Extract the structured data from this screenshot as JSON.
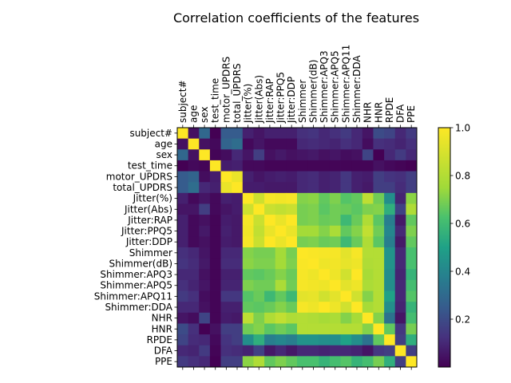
{
  "chart_data": {
    "type": "heatmap",
    "title": "Correlation coefficients of the features",
    "xlabel": "",
    "ylabel": "",
    "x_tick_position": "top",
    "labels": [
      "subject#",
      "age",
      "sex",
      "test_time",
      "motor_UPDRS",
      "total_UPDRS",
      "Jitter(%)",
      "Jitter(Abs)",
      "Jitter:RAP",
      "Jitter:PPQ5",
      "Jitter:DDP",
      "Shimmer",
      "Shimmer(dB)",
      "Shimmer:APQ3",
      "Shimmer:APQ5",
      "Shimmer:APQ11",
      "Shimmer:DDA",
      "NHR",
      "HNR",
      "RPDE",
      "DFA",
      "PPE"
    ],
    "colormap": "viridis",
    "color_range": [
      0.0,
      1.0
    ],
    "colorbar_ticks": [
      "0.2",
      "0.4",
      "0.6",
      "0.8",
      "1.0"
    ],
    "colorbar_tick_values": [
      0.2,
      0.4,
      0.6,
      0.8,
      1.0
    ],
    "values": [
      [
        1.0,
        0.04,
        0.29,
        0.0,
        0.25,
        0.25,
        0.08,
        0.05,
        0.08,
        0.08,
        0.08,
        0.12,
        0.13,
        0.1,
        0.12,
        0.15,
        0.1,
        0.05,
        0.2,
        0.18,
        0.1,
        0.15
      ],
      [
        0.04,
        1.0,
        0.04,
        0.02,
        0.28,
        0.31,
        0.02,
        0.05,
        0.02,
        0.02,
        0.02,
        0.1,
        0.11,
        0.1,
        0.09,
        0.12,
        0.1,
        0.03,
        0.12,
        0.11,
        0.09,
        0.12
      ],
      [
        0.29,
        0.04,
        1.0,
        0.01,
        0.03,
        0.1,
        0.05,
        0.16,
        0.04,
        0.06,
        0.04,
        0.05,
        0.06,
        0.04,
        0.05,
        0.03,
        0.04,
        0.18,
        0.0,
        0.1,
        0.15,
        0.1
      ],
      [
        0.0,
        0.02,
        0.01,
        1.0,
        0.07,
        0.08,
        0.02,
        0.02,
        0.01,
        0.01,
        0.01,
        0.01,
        0.01,
        0.01,
        0.01,
        0.01,
        0.01,
        0.01,
        0.04,
        0.02,
        0.01,
        0.0
      ],
      [
        0.25,
        0.28,
        0.03,
        0.07,
        1.0,
        0.95,
        0.08,
        0.05,
        0.07,
        0.08,
        0.07,
        0.1,
        0.11,
        0.08,
        0.09,
        0.14,
        0.08,
        0.07,
        0.16,
        0.13,
        0.12,
        0.16
      ],
      [
        0.25,
        0.31,
        0.1,
        0.08,
        0.95,
        1.0,
        0.07,
        0.07,
        0.06,
        0.06,
        0.06,
        0.1,
        0.11,
        0.08,
        0.09,
        0.14,
        0.08,
        0.06,
        0.16,
        0.16,
        0.11,
        0.16
      ],
      [
        0.08,
        0.02,
        0.05,
        0.02,
        0.08,
        0.07,
        1.0,
        0.87,
        0.98,
        0.97,
        0.98,
        0.71,
        0.72,
        0.66,
        0.7,
        0.64,
        0.66,
        0.83,
        0.68,
        0.43,
        0.09,
        0.72
      ],
      [
        0.05,
        0.05,
        0.16,
        0.02,
        0.05,
        0.07,
        0.87,
        1.0,
        0.86,
        0.84,
        0.86,
        0.69,
        0.7,
        0.65,
        0.68,
        0.67,
        0.65,
        0.7,
        0.71,
        0.55,
        0.17,
        0.79
      ],
      [
        0.08,
        0.02,
        0.04,
        0.01,
        0.07,
        0.06,
        0.98,
        0.86,
        1.0,
        0.95,
        1.0,
        0.69,
        0.7,
        0.67,
        0.68,
        0.59,
        0.67,
        0.79,
        0.65,
        0.37,
        0.06,
        0.66
      ],
      [
        0.08,
        0.02,
        0.06,
        0.01,
        0.08,
        0.06,
        0.97,
        0.84,
        0.95,
        1.0,
        0.95,
        0.76,
        0.76,
        0.71,
        0.78,
        0.66,
        0.71,
        0.84,
        0.68,
        0.4,
        0.1,
        0.7
      ],
      [
        0.08,
        0.02,
        0.04,
        0.01,
        0.07,
        0.06,
        0.98,
        0.86,
        1.0,
        0.95,
        1.0,
        0.69,
        0.7,
        0.67,
        0.68,
        0.59,
        0.67,
        0.79,
        0.65,
        0.37,
        0.06,
        0.66
      ],
      [
        0.12,
        0.1,
        0.05,
        0.01,
        0.1,
        0.1,
        0.71,
        0.69,
        0.69,
        0.76,
        0.69,
        1.0,
        0.99,
        0.98,
        0.98,
        0.93,
        0.98,
        0.8,
        0.8,
        0.45,
        0.1,
        0.62
      ],
      [
        0.13,
        0.11,
        0.06,
        0.01,
        0.11,
        0.11,
        0.72,
        0.7,
        0.7,
        0.76,
        0.7,
        0.99,
        1.0,
        0.96,
        0.97,
        0.94,
        0.96,
        0.79,
        0.8,
        0.45,
        0.1,
        0.62
      ],
      [
        0.1,
        0.1,
        0.04,
        0.01,
        0.08,
        0.08,
        0.66,
        0.65,
        0.67,
        0.71,
        0.67,
        0.98,
        0.96,
        1.0,
        0.96,
        0.88,
        1.0,
        0.77,
        0.8,
        0.43,
        0.09,
        0.57
      ],
      [
        0.12,
        0.09,
        0.05,
        0.01,
        0.09,
        0.09,
        0.7,
        0.68,
        0.68,
        0.78,
        0.68,
        0.98,
        0.97,
        0.96,
        1.0,
        0.93,
        0.96,
        0.78,
        0.8,
        0.43,
        0.1,
        0.61
      ],
      [
        0.15,
        0.12,
        0.03,
        0.01,
        0.14,
        0.14,
        0.64,
        0.67,
        0.59,
        0.66,
        0.59,
        0.93,
        0.94,
        0.88,
        0.93,
        1.0,
        0.88,
        0.71,
        0.8,
        0.5,
        0.1,
        0.64
      ],
      [
        0.1,
        0.1,
        0.04,
        0.01,
        0.08,
        0.08,
        0.66,
        0.65,
        0.67,
        0.71,
        0.67,
        0.98,
        0.96,
        1.0,
        0.96,
        0.88,
        1.0,
        0.77,
        0.8,
        0.43,
        0.09,
        0.57
      ],
      [
        0.05,
        0.03,
        0.18,
        0.01,
        0.07,
        0.06,
        0.83,
        0.7,
        0.79,
        0.84,
        0.79,
        0.8,
        0.79,
        0.77,
        0.78,
        0.71,
        0.77,
        1.0,
        0.71,
        0.33,
        0.05,
        0.61
      ],
      [
        0.2,
        0.12,
        0.0,
        0.04,
        0.16,
        0.16,
        0.68,
        0.71,
        0.65,
        0.68,
        0.65,
        0.8,
        0.8,
        0.8,
        0.8,
        0.8,
        0.8,
        0.71,
        1.0,
        0.66,
        0.14,
        0.69
      ],
      [
        0.18,
        0.11,
        0.1,
        0.02,
        0.13,
        0.16,
        0.43,
        0.55,
        0.37,
        0.4,
        0.37,
        0.45,
        0.45,
        0.43,
        0.43,
        0.5,
        0.43,
        0.33,
        0.66,
        1.0,
        0.16,
        0.55
      ],
      [
        0.1,
        0.09,
        0.15,
        0.01,
        0.12,
        0.11,
        0.09,
        0.17,
        0.06,
        0.1,
        0.06,
        0.1,
        0.1,
        0.09,
        0.1,
        0.1,
        0.09,
        0.05,
        0.14,
        0.16,
        1.0,
        0.16
      ],
      [
        0.15,
        0.12,
        0.1,
        0.0,
        0.16,
        0.16,
        0.72,
        0.79,
        0.66,
        0.7,
        0.66,
        0.62,
        0.62,
        0.57,
        0.61,
        0.64,
        0.57,
        0.61,
        0.69,
        0.55,
        0.16,
        1.0
      ]
    ]
  }
}
